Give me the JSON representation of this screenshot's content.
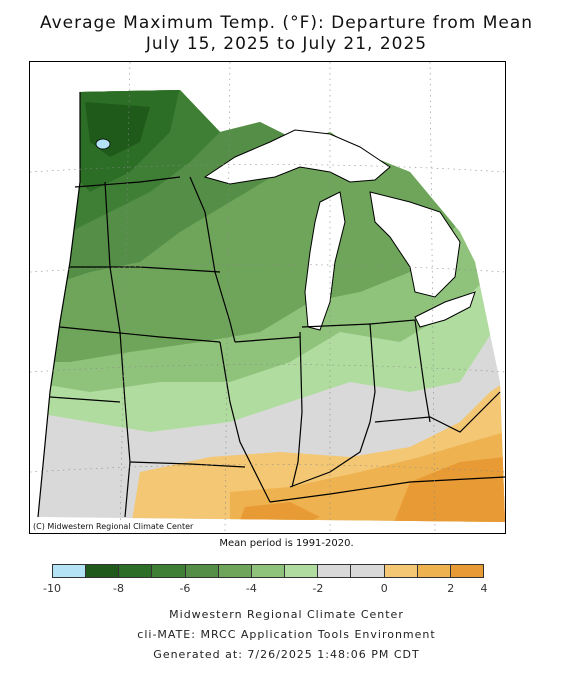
{
  "title_line1": "Average Maximum Temp. (°F): Departure from Mean",
  "title_line2": "July 15, 2025 to July 21, 2025",
  "copyright": "(C) Midwestern Regional Climate Center",
  "mean_period": "Mean period is 1991-2020.",
  "legend": {
    "colors": [
      "#b3e3f5",
      "#1f5a1a",
      "#2d6e27",
      "#3f7f35",
      "#558f47",
      "#6ea55a",
      "#8fc27b",
      "#b0dd9f",
      "#d9d9d9",
      "#d9d9d9",
      "#f3c773",
      "#eeb350",
      "#e89a34"
    ],
    "ticks": [
      "-10",
      "-8",
      "-6",
      "-4",
      "-2",
      "0",
      "2",
      "4"
    ]
  },
  "footer": {
    "line1": "Midwestern Regional Climate Center",
    "line2": "cli-MATE: MRCC Application Tools Environment",
    "line3": "Generated at: 7/26/2025 1:48:06 PM CDT"
  }
}
